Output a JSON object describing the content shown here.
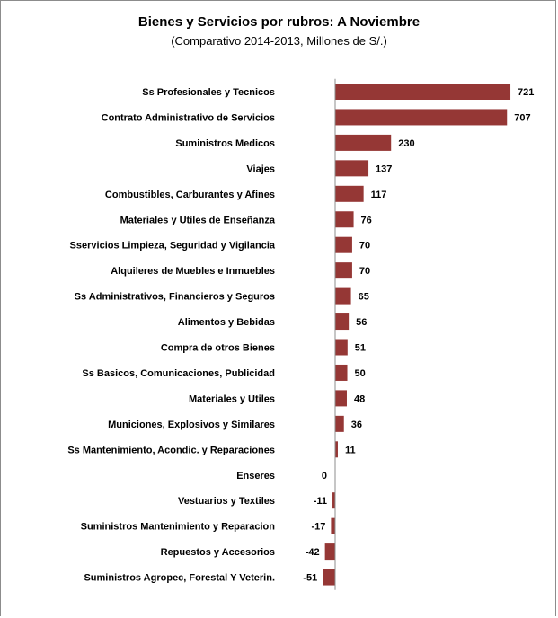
{
  "chart_data": {
    "type": "bar",
    "orientation": "horizontal",
    "title": "Bienes y Servicios por rubros: A  Noviembre",
    "subtitle": "(Comparativo 2014-2013, Millones de S/.)",
    "categories": [
      "Ss Profesionales y Tecnicos",
      "Contrato Administrativo de Servicios",
      "Suministros Medicos",
      "Viajes",
      "Combustibles, Carburantes y Afines",
      "Materiales y Utiles de Enseñanza",
      "Sservicios Limpieza, Seguridad y Vigilancia",
      "Alquileres de Muebles e Inmuebles",
      "Ss Administrativos, Financieros y Seguros",
      "Alimentos y Bebidas",
      "Compra de otros Bienes",
      "Ss Basicos, Comunicaciones, Publicidad",
      "Materiales y  Utiles",
      "Municiones,  Explosivos y Similares",
      "Ss Mantenimiento, Acondic. y  Reparaciones",
      "Enseres",
      "Vestuarios y Textiles",
      "Suministros Mantenimiento y Reparacion",
      "Repuestos y Accesorios",
      "Suministros Agropec, Forestal Y Veterin."
    ],
    "values": [
      721,
      707,
      230,
      137,
      117,
      76,
      70,
      70,
      65,
      56,
      51,
      50,
      48,
      36,
      11,
      0,
      -11,
      -17,
      -42,
      -51
    ],
    "value_labels": [
      "721",
      "707",
      "230",
      "137",
      "117",
      "76",
      "70",
      "70",
      "65",
      "56",
      "51",
      "50",
      "48",
      "36",
      "11",
      "0",
      "-11",
      "-17",
      "-42",
      "-51"
    ],
    "bar_color": "#953735",
    "grid": false,
    "legend": "none"
  }
}
